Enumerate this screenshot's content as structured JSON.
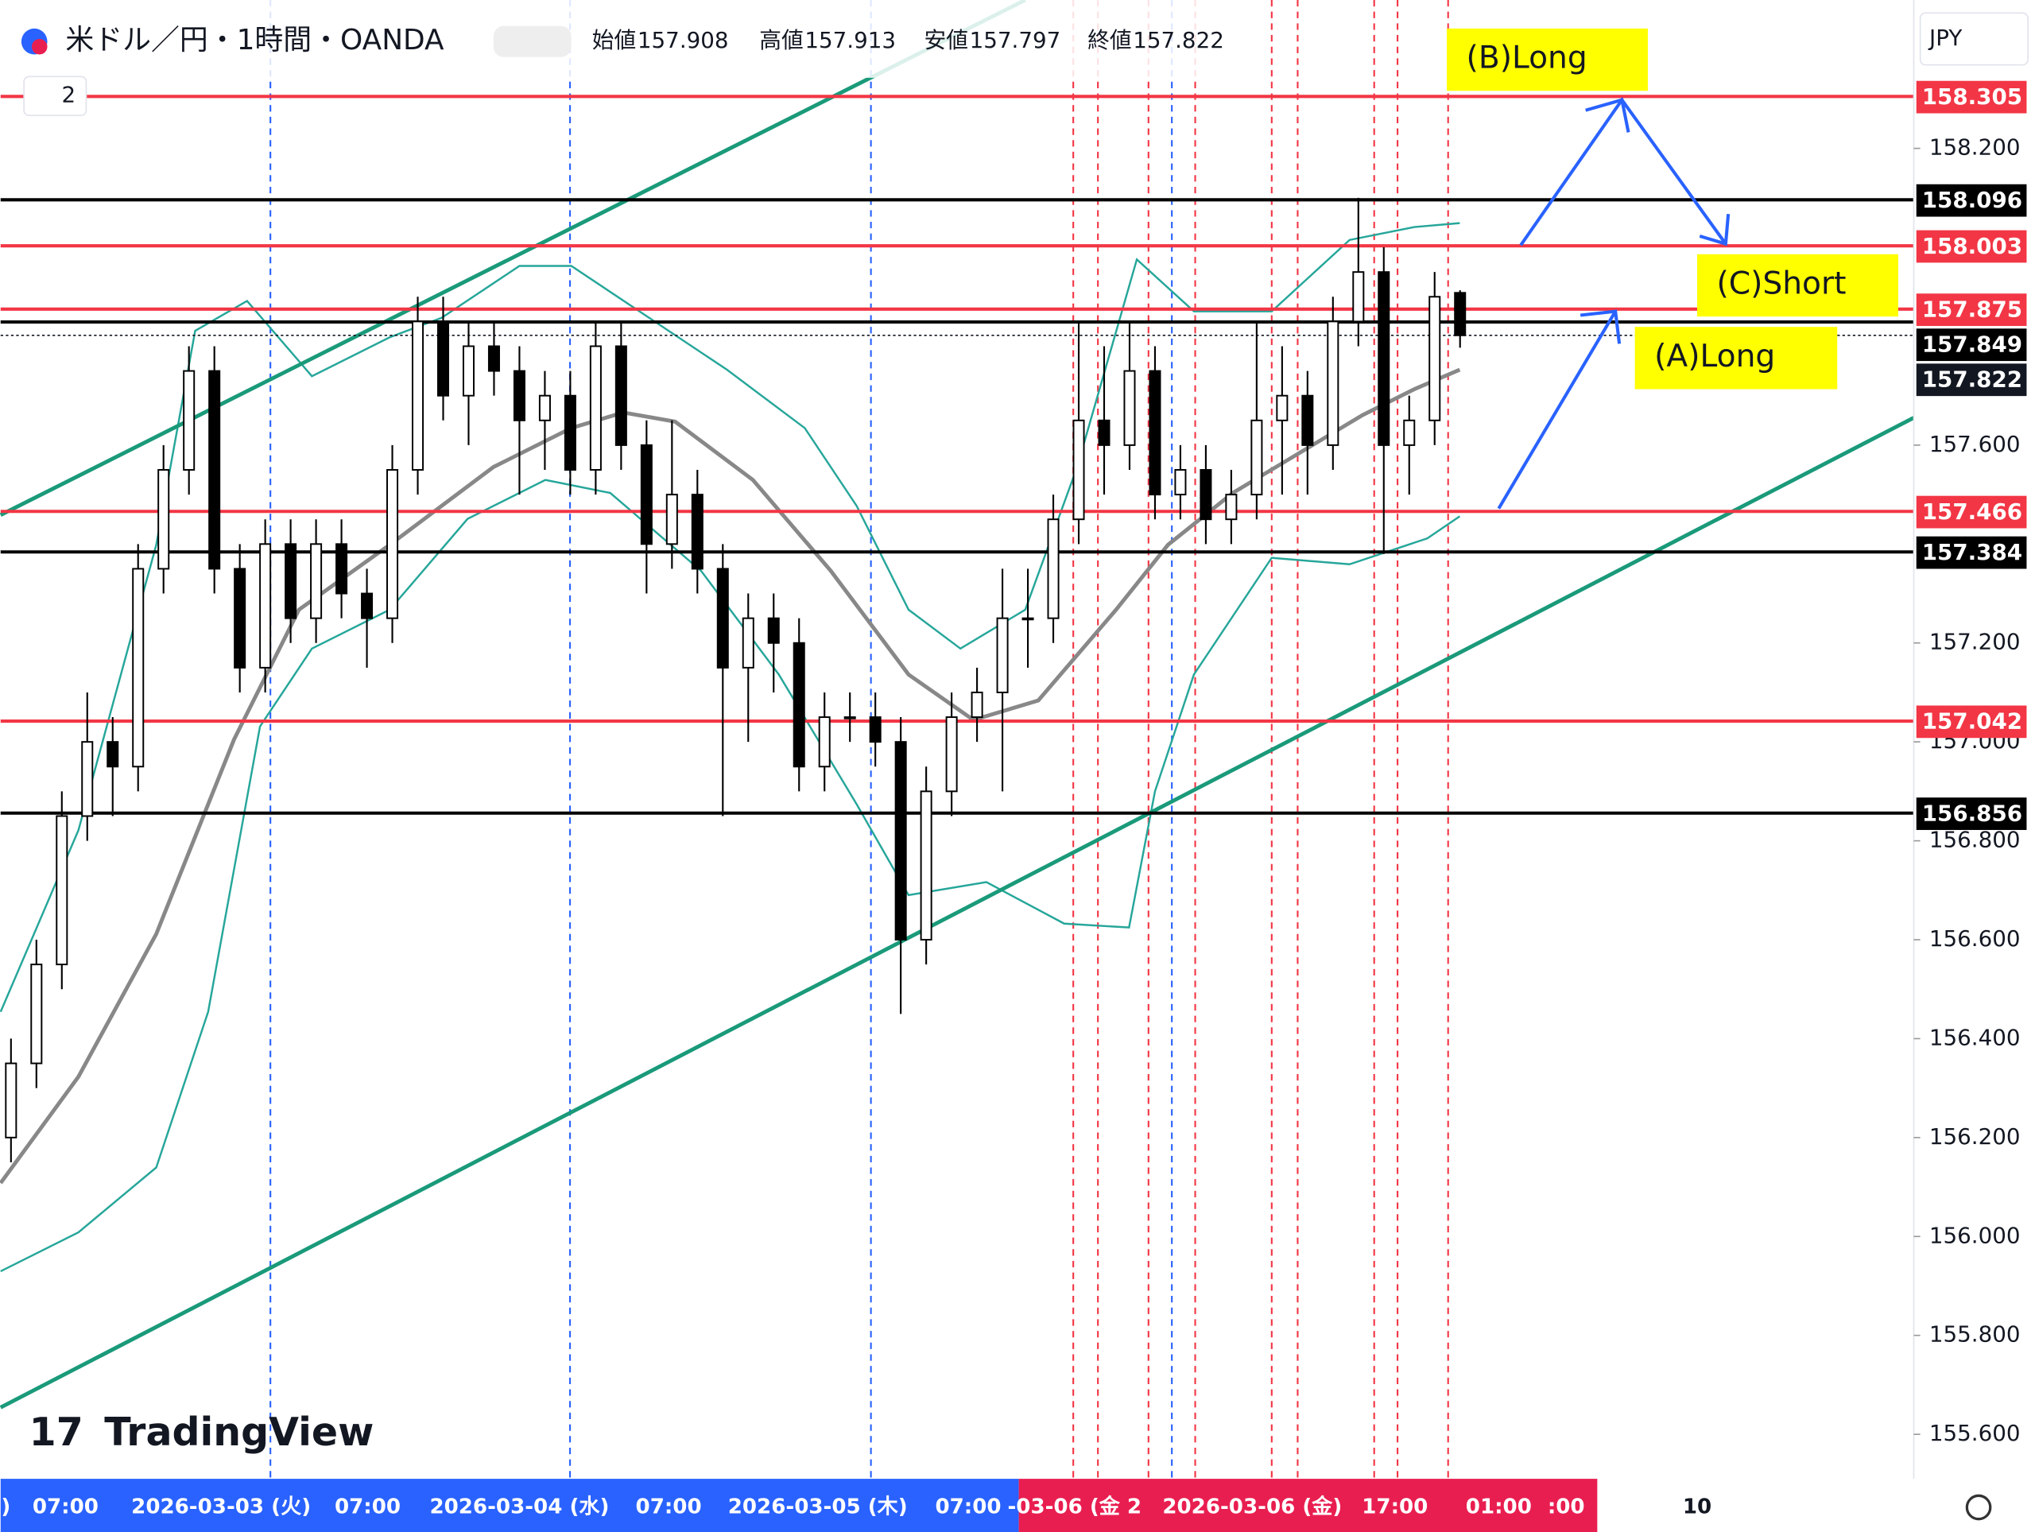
{
  "header": {
    "symbol": "米ドル／円・1時間・OANDA",
    "open_label": "始値",
    "high_label": "高値",
    "low_label": "安値",
    "close_label": "終値",
    "indicator_count": "2",
    "currency": "JPY"
  },
  "chart_data": {
    "type": "candlestick",
    "candles": [
      [
        156.2,
        156.4,
        156.15,
        156.35
      ],
      [
        156.35,
        156.6,
        156.3,
        156.55
      ],
      [
        156.55,
        156.9,
        156.5,
        156.85
      ],
      [
        156.85,
        157.1,
        156.8,
        157.0
      ],
      [
        157.0,
        157.05,
        156.85,
        156.95
      ],
      [
        156.95,
        157.4,
        156.9,
        157.35
      ],
      [
        157.35,
        157.6,
        157.3,
        157.55
      ],
      [
        157.55,
        157.8,
        157.5,
        157.75
      ],
      [
        157.75,
        157.8,
        157.3,
        157.35
      ],
      [
        157.35,
        157.4,
        157.1,
        157.15
      ],
      [
        157.15,
        157.45,
        157.1,
        157.4
      ],
      [
        157.4,
        157.45,
        157.2,
        157.25
      ],
      [
        157.25,
        157.45,
        157.2,
        157.4
      ],
      [
        157.4,
        157.45,
        157.25,
        157.3
      ],
      [
        157.3,
        157.35,
        157.15,
        157.25
      ],
      [
        157.25,
        157.6,
        157.2,
        157.55
      ],
      [
        157.55,
        157.9,
        157.5,
        157.85
      ],
      [
        157.85,
        157.9,
        157.65,
        157.7
      ],
      [
        157.7,
        157.85,
        157.6,
        157.8
      ],
      [
        157.8,
        157.85,
        157.7,
        157.75
      ],
      [
        157.75,
        157.8,
        157.5,
        157.65
      ],
      [
        157.65,
        157.75,
        157.55,
        157.7
      ],
      [
        157.7,
        157.75,
        157.5,
        157.55
      ],
      [
        157.55,
        157.85,
        157.5,
        157.8
      ],
      [
        157.8,
        157.85,
        157.55,
        157.6
      ],
      [
        157.6,
        157.65,
        157.3,
        157.4
      ],
      [
        157.4,
        157.65,
        157.35,
        157.5
      ],
      [
        157.5,
        157.55,
        157.3,
        157.35
      ],
      [
        157.35,
        157.4,
        156.85,
        157.15
      ],
      [
        157.15,
        157.3,
        157.0,
        157.25
      ],
      [
        157.25,
        157.3,
        157.1,
        157.2
      ],
      [
        157.2,
        157.25,
        156.9,
        156.95
      ],
      [
        156.95,
        157.1,
        156.9,
        157.05
      ],
      [
        157.05,
        157.1,
        157.0,
        157.05
      ],
      [
        157.05,
        157.1,
        156.95,
        157.0
      ],
      [
        157.0,
        157.05,
        156.45,
        156.6
      ],
      [
        156.6,
        156.95,
        156.55,
        156.9
      ],
      [
        156.9,
        157.1,
        156.85,
        157.05
      ],
      [
        157.05,
        157.15,
        157.0,
        157.1
      ],
      [
        157.1,
        157.35,
        156.9,
        157.25
      ],
      [
        157.25,
        157.35,
        157.15,
        157.25
      ],
      [
        157.25,
        157.5,
        157.2,
        157.45
      ],
      [
        157.45,
        157.85,
        157.4,
        157.65
      ],
      [
        157.65,
        157.8,
        157.5,
        157.6
      ],
      [
        157.6,
        157.85,
        157.55,
        157.75
      ],
      [
        157.75,
        157.8,
        157.45,
        157.5
      ],
      [
        157.5,
        157.6,
        157.45,
        157.55
      ],
      [
        157.55,
        157.6,
        157.4,
        157.45
      ],
      [
        157.45,
        157.55,
        157.4,
        157.5
      ],
      [
        157.5,
        157.85,
        157.45,
        157.65
      ],
      [
        157.65,
        157.8,
        157.5,
        157.7
      ],
      [
        157.7,
        157.75,
        157.5,
        157.6
      ],
      [
        157.6,
        157.9,
        157.55,
        157.85
      ],
      [
        157.85,
        158.1,
        157.8,
        157.95
      ],
      [
        157.95,
        158.0,
        157.38,
        157.6
      ],
      [
        157.6,
        157.7,
        157.5,
        157.65
      ],
      [
        157.65,
        157.95,
        157.6,
        157.9
      ],
      [
        157.908,
        157.913,
        157.797,
        157.822
      ]
    ],
    "ylim": [
      155.51,
      158.5
    ],
    "yticks": [
      {
        "value": 158.2,
        "label": "158.200"
      },
      {
        "value": 157.6,
        "label": "157.600"
      },
      {
        "value": 157.2,
        "label": "157.200"
      },
      {
        "value": 157.0,
        "label": "157.000"
      },
      {
        "value": 156.8,
        "label": "156.800"
      },
      {
        "value": 156.6,
        "label": "156.600"
      },
      {
        "value": 156.4,
        "label": "156.400"
      },
      {
        "value": 156.2,
        "label": "156.200"
      },
      {
        "value": 156.0,
        "label": "156.000"
      },
      {
        "value": 155.8,
        "label": "155.800"
      },
      {
        "value": 155.6,
        "label": "155.600"
      }
    ],
    "levels": [
      {
        "value": 158.305,
        "color": "#f23645"
      },
      {
        "value": 158.096,
        "color": "#000000"
      },
      {
        "value": 158.003,
        "color": "#f23645"
      },
      {
        "value": 157.875,
        "color": "#f23645"
      },
      {
        "value": 157.849,
        "color": "#000000"
      },
      {
        "value": 157.466,
        "color": "#f23645"
      },
      {
        "value": 157.384,
        "color": "#000000"
      },
      {
        "value": 157.042,
        "color": "#f23645"
      },
      {
        "value": 156.856,
        "color": "#000000"
      }
    ],
    "x_labels": [
      ")",
      "07:00",
      "2026-03-03 (火)",
      "07:00",
      "2026-03-04 (水)",
      "07:00",
      "2026-03-05 (木)",
      "07:00",
      "-03-06 (金 2",
      "2026-03-06 (金)",
      "17:00",
      "01:00",
      ":00",
      "10"
    ],
    "annotations": [
      "(B)Long",
      "(C)Short",
      "(A)Long"
    ],
    "up_color": "#ffffff",
    "down_color": "#000000"
  },
  "watermark": "TradingView"
}
